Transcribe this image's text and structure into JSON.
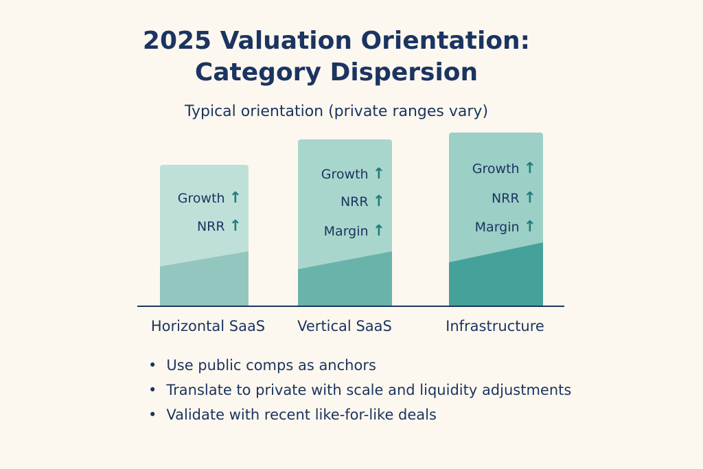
{
  "title_line1": "2025 Valuation Orientation:",
  "title_line2": "Category Dispersion",
  "subtitle": "Typical orientation (private ranges vary)",
  "colors": {
    "background": "#fdf8ef",
    "text": "#1b3461",
    "arrow": "#1f7c7c"
  },
  "categories": [
    {
      "label": "Horizontal SaaS",
      "metrics": [
        "Growth",
        "NRR"
      ],
      "top_color": "#bfe0d8",
      "bottom_color": "#93c6bf"
    },
    {
      "label": "Vertical SaaS",
      "metrics": [
        "Growth",
        "NRR",
        "Margin"
      ],
      "top_color": "#a9d6cc",
      "bottom_color": "#6ab3ab"
    },
    {
      "label": "Infrastructure",
      "metrics": [
        "Growth",
        "NRR",
        "Margin"
      ],
      "top_color": "#9ccfc6",
      "bottom_color": "#45a29a"
    }
  ],
  "arrow_icon": "↑",
  "bullets": [
    "Use public comps as anchors",
    "Translate to private with scale and liquidity adjustments",
    "Validate with recent like-for-like deals"
  ]
}
